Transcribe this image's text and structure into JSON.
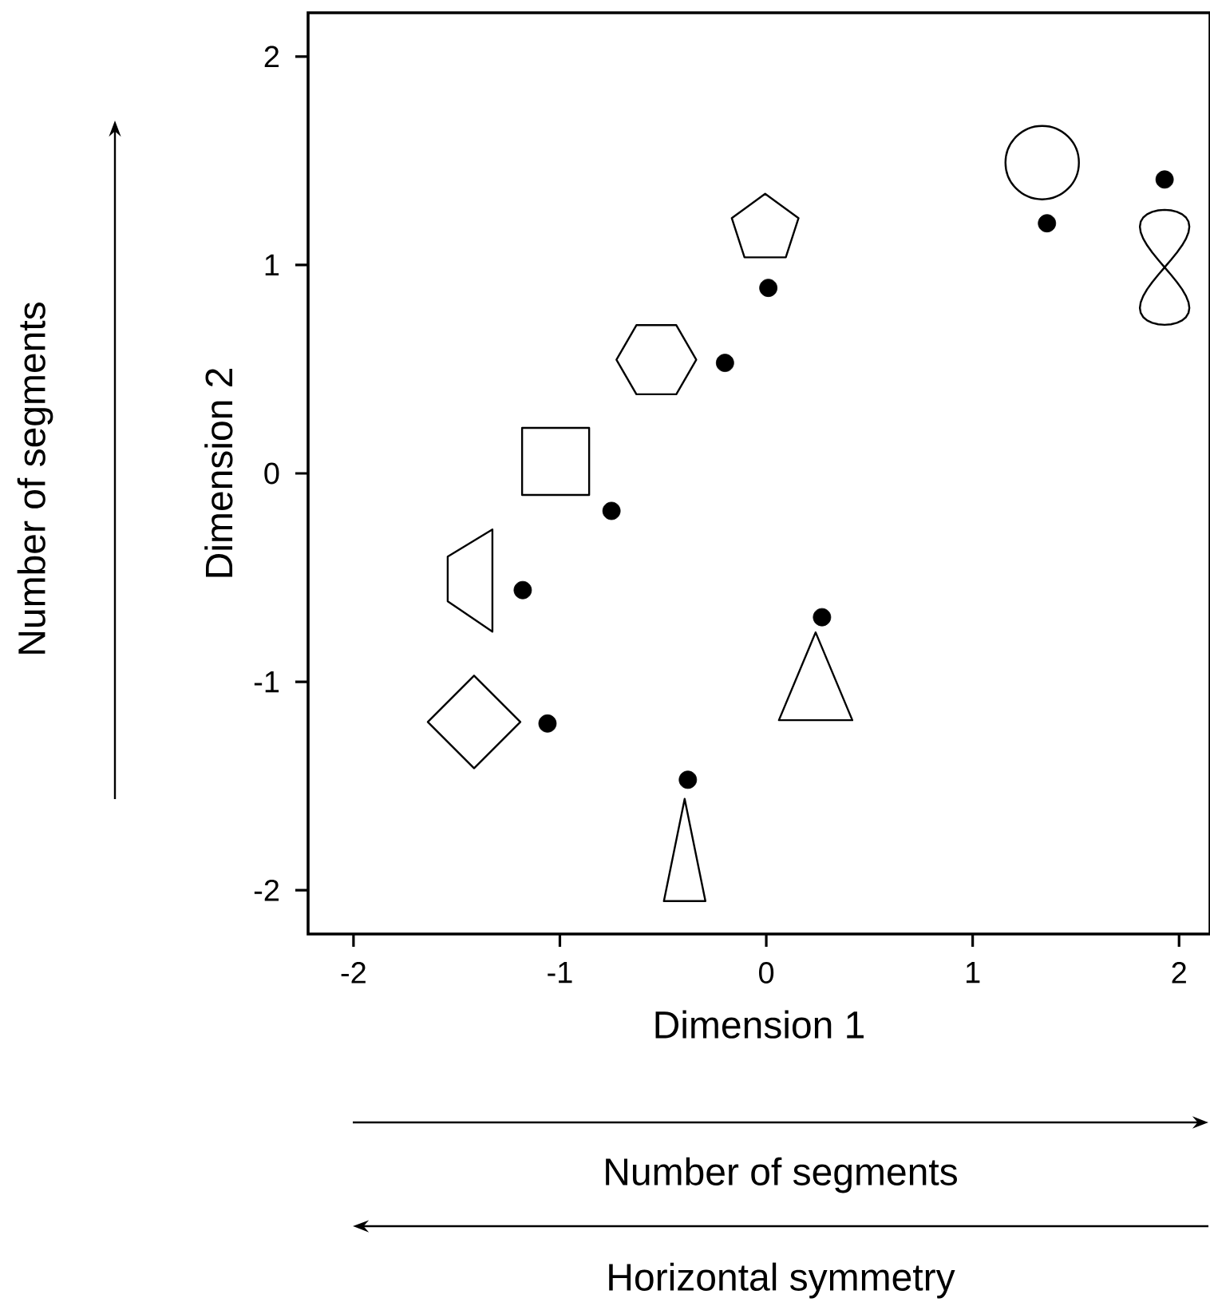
{
  "chart_data": {
    "type": "scatter",
    "xlabel": "Dimension 1",
    "ylabel": "Dimension 2",
    "xlim": [
      -2.22,
      2.15
    ],
    "ylim": [
      -2.21,
      2.21
    ],
    "xticks": [
      -2,
      -1,
      0,
      1,
      2
    ],
    "yticks": [
      -2,
      -1,
      0,
      1,
      2
    ],
    "grid": false,
    "legend": false,
    "series": [
      {
        "color": "#000000",
        "x": [
          1.93,
          1.36,
          0.01,
          -0.2,
          -0.75,
          -1.18,
          -1.06,
          -0.38,
          0.27
        ],
        "values": [
          1.41,
          1.2,
          0.89,
          0.53,
          -0.18,
          -0.56,
          -1.2,
          -1.47,
          -0.69
        ]
      }
    ],
    "annotations": [
      "Number of segments",
      "Number of segments",
      "Horizontal symmetry"
    ]
  }
}
